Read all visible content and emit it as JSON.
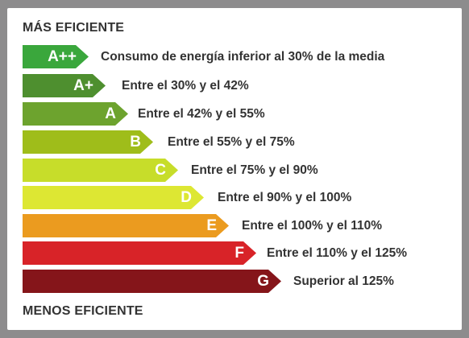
{
  "header": {
    "label": "MÁS EFICIENTE"
  },
  "footer": {
    "label": "MENOS EFICIENTE"
  },
  "classes": [
    {
      "letter": "A++",
      "description": "Consumo de energía inferior al 30% de la media",
      "color": "#3aa73c"
    },
    {
      "letter": "A+",
      "description": "Entre el 30% y el 42%",
      "color": "#4e8f2f"
    },
    {
      "letter": "A",
      "description": "Entre el 42% y el 55%",
      "color": "#6da32e"
    },
    {
      "letter": "B",
      "description": "Entre el 55% y el 75%",
      "color": "#9fbd1a"
    },
    {
      "letter": "C",
      "description": "Entre el 75% y el 90%",
      "color": "#c7dd2a"
    },
    {
      "letter": "D",
      "description": "Entre el 90% y el 100%",
      "color": "#dde733"
    },
    {
      "letter": "E",
      "description": "Entre el 100% y el 110%",
      "color": "#eb9b1f"
    },
    {
      "letter": "F",
      "description": "Entre el 110% y el 125%",
      "color": "#d82328"
    },
    {
      "letter": "G",
      "description": "Superior al 125%",
      "color": "#85151a"
    }
  ]
}
